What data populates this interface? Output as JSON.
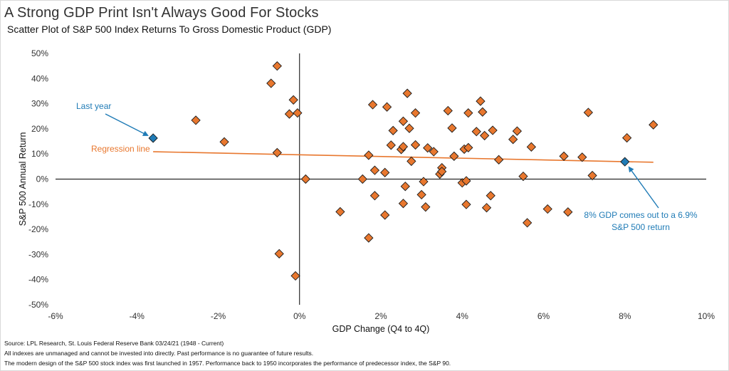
{
  "title": "A Strong GDP Print Isn't Always Good For Stocks",
  "subtitle": "Scatter Plot of S&P 500 Index Returns To Gross Domestic Product (GDP)",
  "footnotes": [
    "Source: LPL Research, St. Louis Federal Reserve Bank 03/24/21 (1948 - Current)",
    "All indexes are unmanaged  and cannot be invested into directly. Past performance is no guarantee of future results.",
    "The modern design of the S&P 500 stock index was first launched in 1957. Performance back to 1950 incorporates the performance of predecessor index, the S&P 90."
  ],
  "colors": {
    "marker": "#e8772e",
    "marker_edge": "#1a1a1a",
    "highlight": "#1f7bb6",
    "regression": "#e8772e",
    "axis": "#000000"
  },
  "chart_data": {
    "type": "scatter",
    "xlabel": "GDP Change (Q4 to 4Q)",
    "ylabel": "S&P 500 Annual Return",
    "xlim": [
      -6,
      10
    ],
    "ylim": [
      -50,
      50
    ],
    "x_ticks": [
      -6,
      -4,
      -2,
      0,
      2,
      4,
      6,
      8,
      10
    ],
    "y_ticks": [
      -50,
      -40,
      -30,
      -20,
      -10,
      0,
      10,
      20,
      30,
      40,
      50
    ],
    "x_tick_labels": [
      "-6%",
      "-4%",
      "-2%",
      "0%",
      "2%",
      "4%",
      "6%",
      "8%",
      "10%"
    ],
    "y_tick_labels": [
      "-50%",
      "-40%",
      "-30%",
      "-20%",
      "-10%",
      "0%",
      "10%",
      "20%",
      "30%",
      "40%",
      "50%"
    ],
    "grid": false,
    "points": [
      {
        "x": -2.55,
        "y": 23.4
      },
      {
        "x": -1.85,
        "y": 14.8
      },
      {
        "x": -0.7,
        "y": 38.1
      },
      {
        "x": -0.55,
        "y": 45.0
      },
      {
        "x": -0.55,
        "y": 10.5
      },
      {
        "x": -0.5,
        "y": -29.7
      },
      {
        "x": -0.25,
        "y": 25.9
      },
      {
        "x": -0.15,
        "y": 31.5
      },
      {
        "x": -0.05,
        "y": 26.3
      },
      {
        "x": -0.1,
        "y": -38.5
      },
      {
        "x": 0.15,
        "y": 0.0
      },
      {
        "x": 1.0,
        "y": -13.0
      },
      {
        "x": 1.55,
        "y": 0.0
      },
      {
        "x": 1.7,
        "y": 9.5
      },
      {
        "x": 1.7,
        "y": -23.4
      },
      {
        "x": 1.8,
        "y": 29.6
      },
      {
        "x": 1.85,
        "y": 3.5
      },
      {
        "x": 1.85,
        "y": -6.6
      },
      {
        "x": 2.1,
        "y": 2.6
      },
      {
        "x": 2.1,
        "y": -14.3
      },
      {
        "x": 2.15,
        "y": 28.7
      },
      {
        "x": 2.25,
        "y": 13.5
      },
      {
        "x": 2.3,
        "y": 19.3
      },
      {
        "x": 2.5,
        "y": 11.8
      },
      {
        "x": 2.55,
        "y": 23.0
      },
      {
        "x": 2.55,
        "y": 12.9
      },
      {
        "x": 2.55,
        "y": -9.7
      },
      {
        "x": 2.6,
        "y": -2.9
      },
      {
        "x": 2.65,
        "y": 34.1
      },
      {
        "x": 2.7,
        "y": 20.2
      },
      {
        "x": 2.75,
        "y": 7.1
      },
      {
        "x": 2.85,
        "y": 26.3
      },
      {
        "x": 2.85,
        "y": 13.6
      },
      {
        "x": 3.0,
        "y": -6.2
      },
      {
        "x": 3.05,
        "y": -1.0
      },
      {
        "x": 3.1,
        "y": -11.1
      },
      {
        "x": 3.15,
        "y": 12.4
      },
      {
        "x": 3.3,
        "y": 10.9
      },
      {
        "x": 3.45,
        "y": 2.0
      },
      {
        "x": 3.5,
        "y": 4.5
      },
      {
        "x": 3.5,
        "y": 3.0
      },
      {
        "x": 3.65,
        "y": 27.2
      },
      {
        "x": 3.75,
        "y": 20.3
      },
      {
        "x": 3.8,
        "y": 9.1
      },
      {
        "x": 4.0,
        "y": -1.5
      },
      {
        "x": 4.05,
        "y": 11.9
      },
      {
        "x": 4.1,
        "y": -0.7
      },
      {
        "x": 4.1,
        "y": -10.1
      },
      {
        "x": 4.15,
        "y": 26.3
      },
      {
        "x": 4.15,
        "y": 12.5
      },
      {
        "x": 4.35,
        "y": 18.9
      },
      {
        "x": 4.45,
        "y": 31.0
      },
      {
        "x": 4.5,
        "y": 26.7
      },
      {
        "x": 4.55,
        "y": 17.3
      },
      {
        "x": 4.6,
        "y": -11.4
      },
      {
        "x": 4.7,
        "y": -6.6
      },
      {
        "x": 4.75,
        "y": 19.4
      },
      {
        "x": 4.9,
        "y": 7.7
      },
      {
        "x": 5.25,
        "y": 15.8
      },
      {
        "x": 5.35,
        "y": 19.1
      },
      {
        "x": 5.5,
        "y": 1.1
      },
      {
        "x": 5.6,
        "y": -17.4
      },
      {
        "x": 5.7,
        "y": 12.8
      },
      {
        "x": 6.1,
        "y": -11.9
      },
      {
        "x": 6.5,
        "y": 9.1
      },
      {
        "x": 6.6,
        "y": -13.1
      },
      {
        "x": 6.95,
        "y": 8.7
      },
      {
        "x": 7.1,
        "y": 26.5
      },
      {
        "x": 7.2,
        "y": 1.4
      },
      {
        "x": 8.05,
        "y": 16.4
      },
      {
        "x": 8.7,
        "y": 21.6
      }
    ],
    "highlight_points": [
      {
        "x": -3.6,
        "y": 16.3
      },
      {
        "x": 8.0,
        "y": 6.9
      }
    ],
    "regression_line": {
      "x": [
        -3.6,
        8.7
      ],
      "y": [
        10.9,
        6.7
      ]
    },
    "annotations": [
      {
        "text": "Last year",
        "series": "highlight"
      },
      {
        "text": "Regression line",
        "series": "regression"
      },
      {
        "text": "8% GDP comes out to a 6.9%",
        "series": "highlight"
      },
      {
        "text": "S&P 500 return",
        "series": "highlight"
      }
    ]
  }
}
